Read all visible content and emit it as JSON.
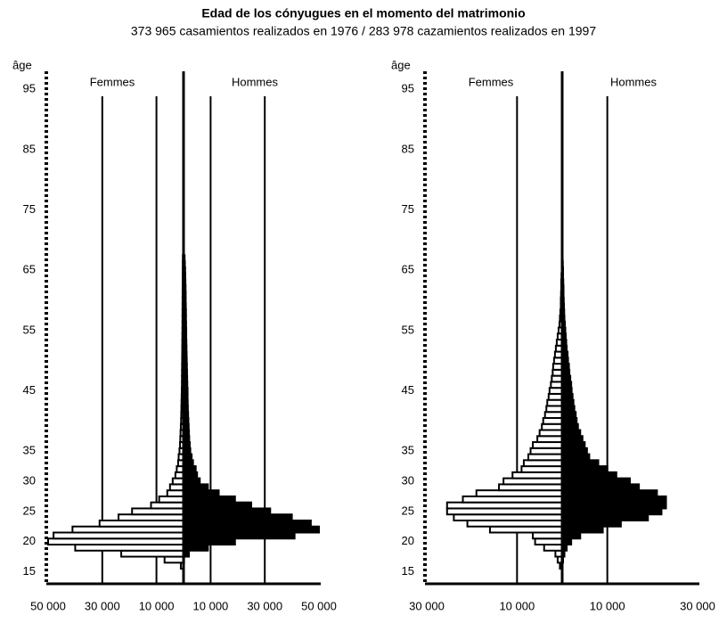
{
  "title": "Edad de los cónyugues en el momento del matrimonio",
  "subtitle": "373 965 casamientos realizados en 1976 / 283 978 cazamientos realizados en 1997",
  "chart_data": [
    {
      "type": "pyramid",
      "y_label": "âge",
      "y": [
        16,
        17,
        18,
        19,
        20,
        21,
        22,
        23,
        24,
        25,
        26,
        27,
        28,
        29,
        30,
        31,
        32,
        33,
        34,
        35,
        36,
        37,
        38,
        39,
        40,
        41,
        42,
        43,
        44,
        45,
        46,
        47,
        48,
        49,
        50,
        51,
        52,
        53,
        54,
        55,
        56,
        57,
        58,
        59,
        60,
        61,
        62,
        63,
        64,
        65,
        66,
        67
      ],
      "ylim": [
        13,
        98
      ],
      "yticks": [
        15,
        20,
        25,
        30,
        35,
        45,
        55,
        65,
        75,
        85,
        95
      ],
      "xlim": [
        0,
        50000
      ],
      "xticks": [
        {
          "value": 10000,
          "label": "10 000"
        },
        {
          "value": 30000,
          "label": "30 000"
        },
        {
          "value": 50000,
          "label": "50 000"
        }
      ],
      "series": [
        {
          "name": "Femmes",
          "color": "#ffffff",
          "side": "left",
          "values": [
            1000,
            7000,
            23000,
            40000,
            50000,
            48000,
            41000,
            31000,
            24000,
            19000,
            12000,
            9000,
            6000,
            5000,
            4000,
            3000,
            2500,
            2000,
            1800,
            1500,
            1300,
            1200,
            1100,
            1000,
            900,
            850,
            800,
            750,
            700,
            650,
            600,
            580,
            560,
            540,
            520,
            500,
            480,
            460,
            440,
            420,
            400,
            390,
            380,
            370,
            360,
            350,
            340,
            330,
            320,
            300,
            280,
            260
          ]
        },
        {
          "name": "Hommes",
          "color": "#000000",
          "side": "right",
          "values": [
            0,
            200,
            2000,
            9000,
            19000,
            41000,
            50000,
            47000,
            40000,
            32000,
            25000,
            19000,
            13000,
            9000,
            6000,
            5000,
            4500,
            3500,
            3000,
            2500,
            2300,
            2100,
            2000,
            1900,
            1800,
            1700,
            1600,
            1550,
            1500,
            1500,
            1400,
            1350,
            1300,
            1250,
            1200,
            1150,
            1100,
            1050,
            1000,
            1000,
            950,
            900,
            900,
            850,
            800,
            800,
            750,
            700,
            650,
            600,
            500,
            400
          ]
        }
      ]
    },
    {
      "type": "pyramid",
      "y_label": "âge",
      "y": [
        16,
        17,
        18,
        19,
        20,
        21,
        22,
        23,
        24,
        25,
        26,
        27,
        28,
        29,
        30,
        31,
        32,
        33,
        34,
        35,
        36,
        37,
        38,
        39,
        40,
        41,
        42,
        43,
        44,
        45,
        46,
        47,
        48,
        49,
        50,
        51,
        52,
        53,
        54,
        55,
        56,
        57,
        58,
        59,
        60,
        61,
        62,
        63,
        64,
        65,
        66,
        67
      ],
      "ylim": [
        13,
        98
      ],
      "yticks": [
        15,
        20,
        25,
        30,
        35,
        45,
        55,
        65,
        75,
        85,
        95
      ],
      "xlim": [
        0,
        30000
      ],
      "xticks": [
        {
          "value": 10000,
          "label": "10 000"
        },
        {
          "value": 30000,
          "label": "30 000"
        }
      ],
      "series": [
        {
          "name": "Femmes",
          "color": "#ffffff",
          "side": "left",
          "values": [
            500,
            1000,
            1500,
            4000,
            6000,
            6500,
            16000,
            21000,
            24000,
            25500,
            25500,
            22000,
            19000,
            14000,
            13000,
            11000,
            9000,
            8500,
            7500,
            7000,
            6500,
            5500,
            5000,
            4500,
            4200,
            3800,
            3500,
            3300,
            3000,
            2800,
            2500,
            2300,
            2100,
            2000,
            1800,
            1600,
            1400,
            1200,
            1000,
            800,
            600,
            500,
            400,
            300,
            300,
            250,
            200,
            200,
            150,
            100,
            100,
            50
          ]
        },
        {
          "name": "Hommes",
          "color": "#000000",
          "side": "right",
          "values": [
            0,
            200,
            500,
            1000,
            2000,
            4000,
            9000,
            13000,
            19000,
            22000,
            23000,
            23000,
            21000,
            17000,
            15000,
            12000,
            10000,
            8000,
            6000,
            5500,
            5000,
            4500,
            4000,
            3500,
            3200,
            3000,
            2700,
            2500,
            2300,
            2100,
            2000,
            1800,
            1600,
            1500,
            1300,
            1200,
            1000,
            900,
            800,
            700,
            600,
            500,
            450,
            400,
            350,
            300,
            300,
            250,
            200,
            200,
            150,
            100
          ]
        }
      ]
    }
  ]
}
